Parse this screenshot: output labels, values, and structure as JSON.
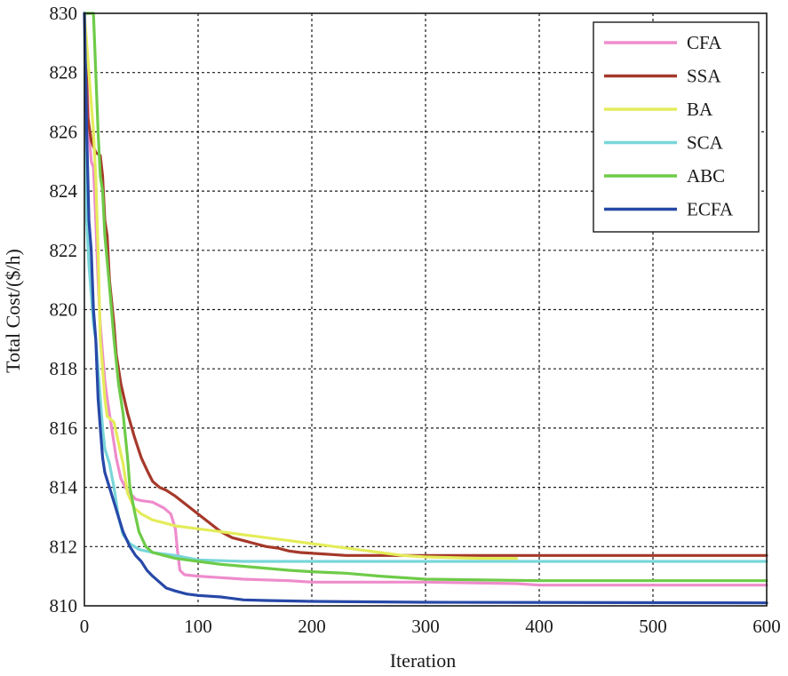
{
  "chart_data": {
    "type": "line",
    "title": "",
    "xlabel": "Iteration",
    "ylabel": "Total Cost/($/h)",
    "xlim": [
      0,
      600
    ],
    "ylim": [
      810,
      830
    ],
    "xticks": [
      0,
      100,
      200,
      300,
      400,
      500,
      600
    ],
    "yticks": [
      810,
      812,
      814,
      816,
      818,
      820,
      822,
      824,
      826,
      828,
      830
    ],
    "grid": true,
    "legend_position": "top-right",
    "series": [
      {
        "name": "CFA",
        "color": "#ee8ccc",
        "points": [
          [
            0,
            830
          ],
          [
            2,
            828
          ],
          [
            4,
            826
          ],
          [
            6,
            825
          ],
          [
            8,
            824.8
          ],
          [
            10,
            823
          ],
          [
            12,
            821
          ],
          [
            14,
            819.5
          ],
          [
            16,
            818.5
          ],
          [
            18,
            817.6
          ],
          [
            20,
            817
          ],
          [
            24,
            816
          ],
          [
            28,
            815
          ],
          [
            32,
            814.3
          ],
          [
            36,
            814
          ],
          [
            40,
            813.8
          ],
          [
            45,
            813.6
          ],
          [
            50,
            813.55
          ],
          [
            60,
            813.5
          ],
          [
            70,
            813.3
          ],
          [
            76,
            813.1
          ],
          [
            80,
            812.6
          ],
          [
            82,
            811.8
          ],
          [
            84,
            811.2
          ],
          [
            88,
            811.05
          ],
          [
            100,
            811
          ],
          [
            120,
            810.95
          ],
          [
            140,
            810.9
          ],
          [
            180,
            810.85
          ],
          [
            200,
            810.8
          ],
          [
            300,
            810.8
          ],
          [
            380,
            810.75
          ],
          [
            400,
            810.7
          ],
          [
            600,
            810.7
          ]
        ]
      },
      {
        "name": "SSA",
        "color": "#a5392a",
        "points": [
          [
            0,
            830
          ],
          [
            3,
            826.5
          ],
          [
            6,
            825.7
          ],
          [
            10,
            825.3
          ],
          [
            14,
            825.2
          ],
          [
            16,
            824.5
          ],
          [
            18,
            823
          ],
          [
            20,
            822.5
          ],
          [
            22,
            821
          ],
          [
            26,
            819.5
          ],
          [
            28,
            818.5
          ],
          [
            32,
            817.5
          ],
          [
            38,
            816.5
          ],
          [
            44,
            815.7
          ],
          [
            50,
            815
          ],
          [
            56,
            814.5
          ],
          [
            60,
            814.2
          ],
          [
            66,
            814
          ],
          [
            72,
            813.9
          ],
          [
            80,
            813.7
          ],
          [
            90,
            813.4
          ],
          [
            100,
            813.1
          ],
          [
            110,
            812.8
          ],
          [
            120,
            812.5
          ],
          [
            130,
            812.3
          ],
          [
            140,
            812.2
          ],
          [
            150,
            812.1
          ],
          [
            160,
            812
          ],
          [
            170,
            811.95
          ],
          [
            180,
            811.85
          ],
          [
            190,
            811.8
          ],
          [
            210,
            811.75
          ],
          [
            230,
            811.7
          ],
          [
            600,
            811.7
          ]
        ]
      },
      {
        "name": "BA",
        "color": "#e4ec5a",
        "points": [
          [
            0,
            830
          ],
          [
            4,
            828
          ],
          [
            8,
            826
          ],
          [
            10,
            824.5
          ],
          [
            12,
            822
          ],
          [
            14,
            819
          ],
          [
            16,
            818
          ],
          [
            18,
            817
          ],
          [
            20,
            816.4
          ],
          [
            26,
            816.2
          ],
          [
            30,
            815.5
          ],
          [
            34,
            814.8
          ],
          [
            38,
            813.8
          ],
          [
            44,
            813.3
          ],
          [
            50,
            813.1
          ],
          [
            60,
            812.9
          ],
          [
            70,
            812.8
          ],
          [
            80,
            812.7
          ],
          [
            100,
            812.6
          ],
          [
            120,
            812.5
          ],
          [
            140,
            812.4
          ],
          [
            160,
            812.3
          ],
          [
            180,
            812.2
          ],
          [
            200,
            812.1
          ],
          [
            220,
            812
          ],
          [
            240,
            811.9
          ],
          [
            260,
            811.8
          ],
          [
            280,
            811.7
          ],
          [
            300,
            811.65
          ],
          [
            350,
            811.6
          ],
          [
            380,
            811.6
          ]
        ]
      },
      {
        "name": "SCA",
        "color": "#79d6d9",
        "points": [
          [
            0,
            830
          ],
          [
            2,
            823
          ],
          [
            4,
            821.5
          ],
          [
            6,
            820.5
          ],
          [
            8,
            819.5
          ],
          [
            10,
            819
          ],
          [
            12,
            818
          ],
          [
            14,
            817
          ],
          [
            16,
            816
          ],
          [
            18,
            815.3
          ],
          [
            22,
            814.8
          ],
          [
            26,
            814
          ],
          [
            30,
            813
          ],
          [
            34,
            812.4
          ],
          [
            40,
            812.1
          ],
          [
            48,
            811.9
          ],
          [
            60,
            811.8
          ],
          [
            80,
            811.7
          ],
          [
            100,
            811.55
          ],
          [
            140,
            811.5
          ],
          [
            200,
            811.5
          ],
          [
            600,
            811.5
          ]
        ]
      },
      {
        "name": "ABC",
        "color": "#6ecb48",
        "points": [
          [
            0,
            830
          ],
          [
            8,
            830
          ],
          [
            10,
            828
          ],
          [
            12,
            826
          ],
          [
            14,
            824.5
          ],
          [
            16,
            824
          ],
          [
            18,
            822.5
          ],
          [
            22,
            820.8
          ],
          [
            26,
            819
          ],
          [
            30,
            817.5
          ],
          [
            34,
            816.5
          ],
          [
            38,
            815
          ],
          [
            40,
            814
          ],
          [
            44,
            813.2
          ],
          [
            48,
            812.5
          ],
          [
            54,
            812
          ],
          [
            60,
            811.8
          ],
          [
            70,
            811.7
          ],
          [
            80,
            811.6
          ],
          [
            90,
            811.55
          ],
          [
            100,
            811.5
          ],
          [
            120,
            811.4
          ],
          [
            150,
            811.3
          ],
          [
            180,
            811.2
          ],
          [
            200,
            811.15
          ],
          [
            230,
            811.1
          ],
          [
            260,
            811
          ],
          [
            300,
            810.9
          ],
          [
            400,
            810.85
          ],
          [
            600,
            810.85
          ]
        ]
      },
      {
        "name": "ECFA",
        "color": "#2748a8",
        "points": [
          [
            0,
            830
          ],
          [
            2,
            826
          ],
          [
            4,
            823
          ],
          [
            6,
            822
          ],
          [
            8,
            820
          ],
          [
            10,
            819
          ],
          [
            12,
            817
          ],
          [
            14,
            816
          ],
          [
            16,
            815
          ],
          [
            18,
            814.5
          ],
          [
            22,
            814
          ],
          [
            26,
            813.5
          ],
          [
            30,
            813
          ],
          [
            34,
            812.5
          ],
          [
            40,
            812
          ],
          [
            45,
            811.7
          ],
          [
            50,
            811.5
          ],
          [
            55,
            811.2
          ],
          [
            60,
            811
          ],
          [
            66,
            810.8
          ],
          [
            72,
            810.6
          ],
          [
            80,
            810.5
          ],
          [
            90,
            810.4
          ],
          [
            100,
            810.35
          ],
          [
            120,
            810.3
          ],
          [
            140,
            810.2
          ],
          [
            160,
            810.18
          ],
          [
            200,
            810.15
          ],
          [
            300,
            810.12
          ],
          [
            600,
            810.1
          ]
        ]
      }
    ]
  }
}
